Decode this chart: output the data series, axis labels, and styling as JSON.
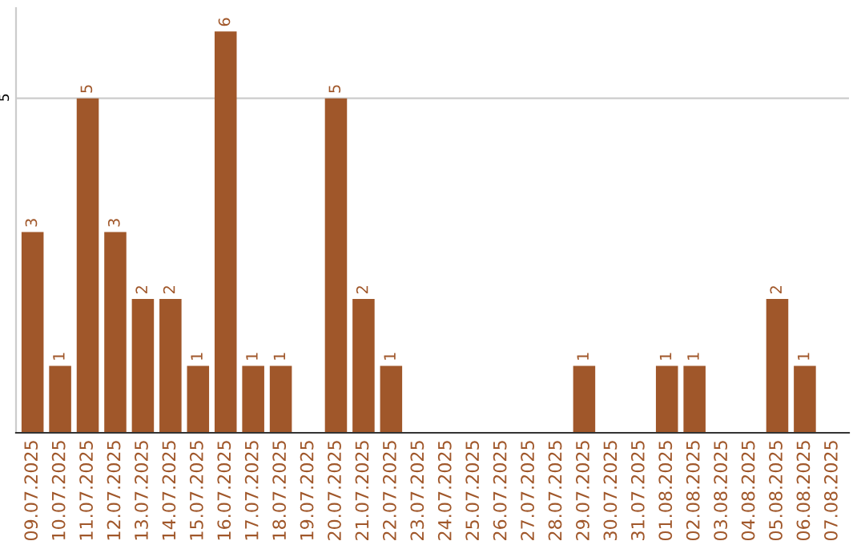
{
  "chart_data": {
    "type": "bar",
    "categories": [
      "09.07.2025",
      "10.07.2025",
      "11.07.2025",
      "12.07.2025",
      "13.07.2025",
      "14.07.2025",
      "15.07.2025",
      "16.07.2025",
      "17.07.2025",
      "18.07.2025",
      "19.07.2025",
      "20.07.2025",
      "21.07.2025",
      "22.07.2025",
      "23.07.2025",
      "24.07.2025",
      "25.07.2025",
      "26.07.2025",
      "27.07.2025",
      "28.07.2025",
      "29.07.2025",
      "30.07.2025",
      "31.07.2025",
      "01.08.2025",
      "02.08.2025",
      "03.08.2025",
      "04.08.2025",
      "05.08.2025",
      "06.08.2025",
      "07.08.2025"
    ],
    "values": [
      3,
      1,
      5,
      3,
      2,
      2,
      1,
      6,
      1,
      1,
      0,
      5,
      2,
      1,
      0,
      0,
      0,
      0,
      0,
      0,
      1,
      0,
      0,
      1,
      1,
      0,
      0,
      2,
      1,
      0
    ],
    "value_labels": [
      "3",
      "1",
      "5",
      "3",
      "2",
      "2",
      "1",
      "6",
      "1",
      "1",
      null,
      "5",
      "2",
      "1",
      null,
      null,
      null,
      null,
      null,
      null,
      "1",
      null,
      null,
      "1",
      "1",
      null,
      null,
      "2",
      "1",
      null
    ],
    "color": "#a0572a",
    "ylim": [
      0,
      6.35
    ],
    "yticks": [
      5
    ],
    "grid": "y",
    "legend": false
  }
}
